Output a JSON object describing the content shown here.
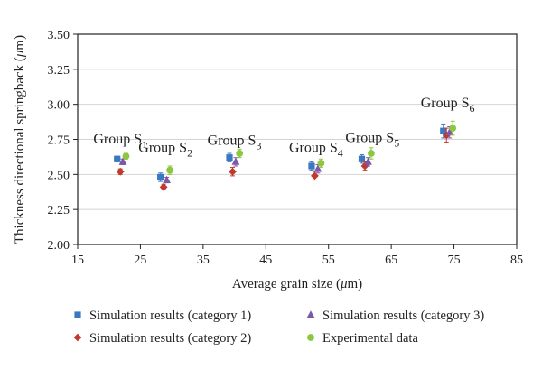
{
  "chart_data": {
    "type": "scatter",
    "xlabel_prefix": "Average grain size (",
    "xlabel_unit": "μ",
    "xlabel_suffix": "m)",
    "ylabel_prefix": "Thickness directional springback (",
    "ylabel_unit": "μ",
    "ylabel_suffix": "m)",
    "xlim": [
      15,
      85
    ],
    "ylim": [
      2.0,
      3.5
    ],
    "xticks": [
      15,
      25,
      35,
      45,
      55,
      65,
      75,
      85
    ],
    "yticks": [
      "2.00",
      "2.25",
      "2.50",
      "2.75",
      "3.00",
      "3.25",
      "3.50"
    ],
    "ytick_values": [
      2.0,
      2.25,
      2.5,
      2.75,
      3.0,
      3.25,
      3.5
    ],
    "group_labels": [
      {
        "prefix": "Group S",
        "sub": "1",
        "x": 21.8,
        "y": 2.72
      },
      {
        "prefix": "Group S",
        "sub": "2",
        "x": 29.0,
        "y": 2.66
      },
      {
        "prefix": "Group S",
        "sub": "3",
        "x": 40.0,
        "y": 2.71
      },
      {
        "prefix": "Group S",
        "sub": "4",
        "x": 53.0,
        "y": 2.66
      },
      {
        "prefix": "Group S",
        "sub": "5",
        "x": 62.0,
        "y": 2.73
      },
      {
        "prefix": "Group S",
        "sub": "6",
        "x": 74.0,
        "y": 2.98
      }
    ],
    "series": [
      {
        "name": "Simulation results (category 1)",
        "marker": "square",
        "color": "#3a78c2",
        "points": [
          {
            "x": 21.3,
            "y": 2.61,
            "err": 0.02
          },
          {
            "x": 28.2,
            "y": 2.48,
            "err": 0.03
          },
          {
            "x": 39.2,
            "y": 2.62,
            "err": 0.03
          },
          {
            "x": 52.3,
            "y": 2.56,
            "err": 0.03
          },
          {
            "x": 60.3,
            "y": 2.61,
            "err": 0.03
          },
          {
            "x": 73.3,
            "y": 2.81,
            "err": 0.05
          }
        ]
      },
      {
        "name": "Simulation results (category 2)",
        "marker": "diamond",
        "color": "#c0392b",
        "points": [
          {
            "x": 21.8,
            "y": 2.52,
            "err": 0.02
          },
          {
            "x": 28.7,
            "y": 2.41,
            "err": 0.02
          },
          {
            "x": 39.7,
            "y": 2.52,
            "err": 0.03
          },
          {
            "x": 52.8,
            "y": 2.49,
            "err": 0.03
          },
          {
            "x": 60.8,
            "y": 2.56,
            "err": 0.03
          },
          {
            "x": 73.8,
            "y": 2.78,
            "err": 0.05
          }
        ]
      },
      {
        "name": "Simulation results (category 3)",
        "marker": "triangle",
        "color": "#7e57a8",
        "points": [
          {
            "x": 22.2,
            "y": 2.59,
            "err": 0.02
          },
          {
            "x": 29.2,
            "y": 2.46,
            "err": 0.02
          },
          {
            "x": 40.2,
            "y": 2.59,
            "err": 0.03
          },
          {
            "x": 53.3,
            "y": 2.54,
            "err": 0.03
          },
          {
            "x": 61.3,
            "y": 2.59,
            "err": 0.03
          },
          {
            "x": 74.3,
            "y": 2.8,
            "err": 0.04
          }
        ]
      },
      {
        "name": "Experimental data",
        "marker": "circle",
        "color": "#8dc63f",
        "points": [
          {
            "x": 22.7,
            "y": 2.63,
            "err": 0.02
          },
          {
            "x": 29.7,
            "y": 2.53,
            "err": 0.03
          },
          {
            "x": 40.8,
            "y": 2.65,
            "err": 0.03
          },
          {
            "x": 53.8,
            "y": 2.58,
            "err": 0.03
          },
          {
            "x": 61.8,
            "y": 2.65,
            "err": 0.04
          },
          {
            "x": 74.8,
            "y": 2.83,
            "err": 0.05
          }
        ]
      }
    ],
    "legend_order": [
      0,
      2,
      1,
      3
    ]
  }
}
